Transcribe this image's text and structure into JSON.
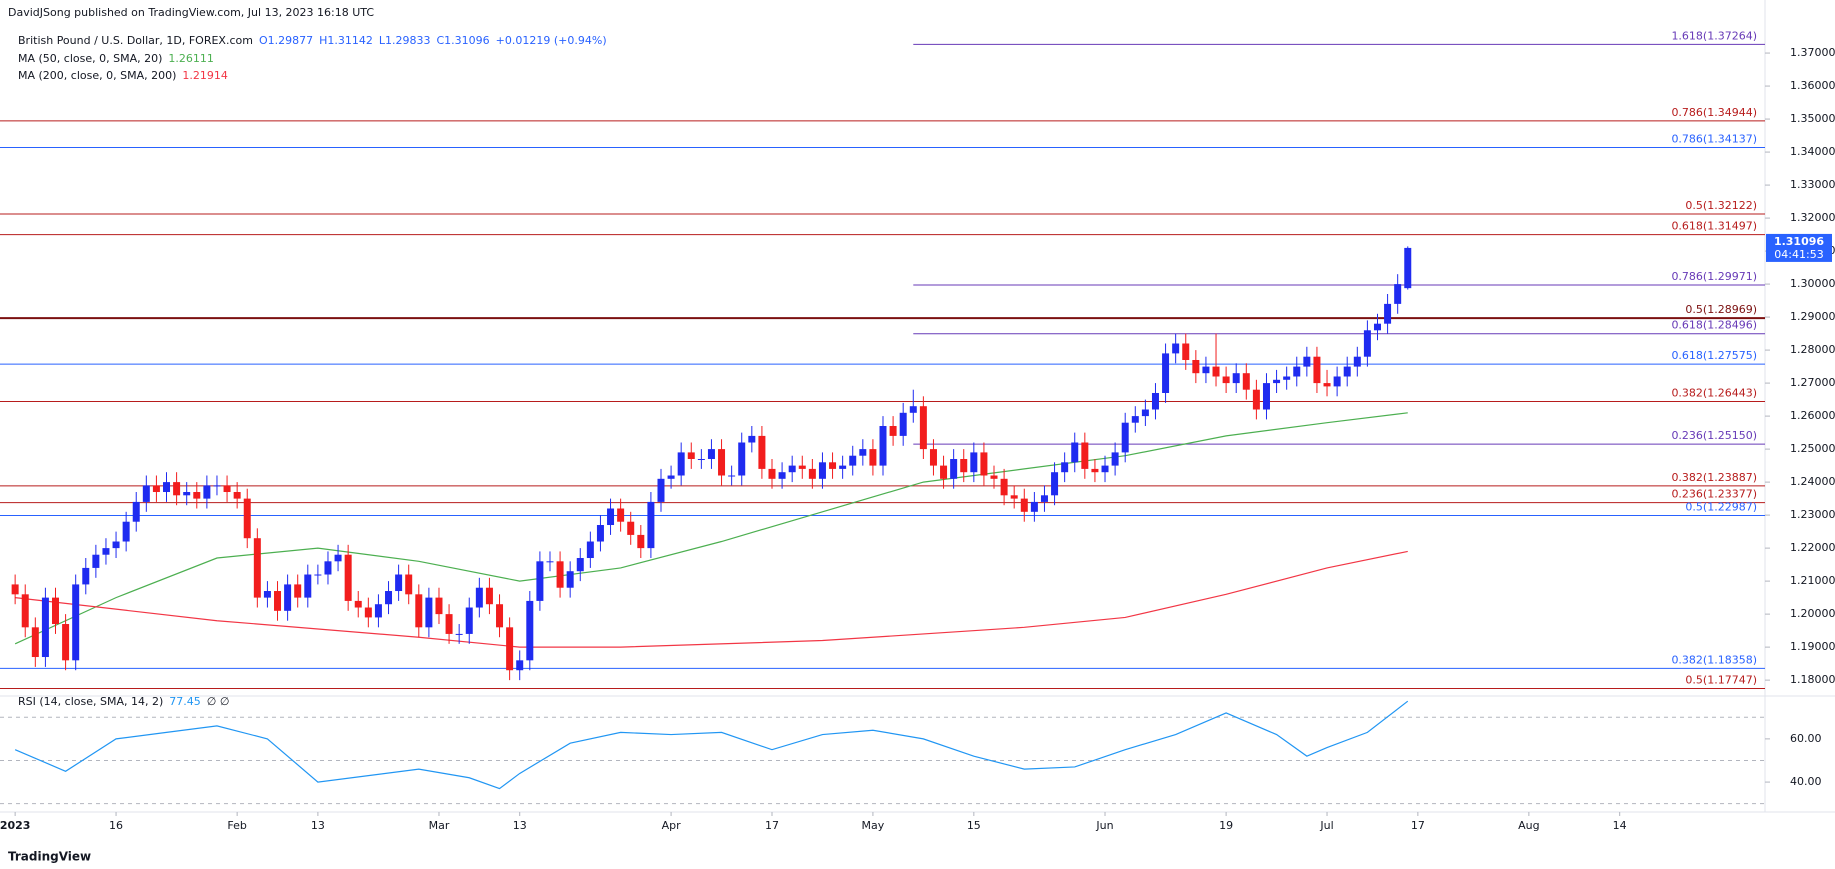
{
  "chart_data": {
    "type": "candlestick",
    "header": {
      "published": "DavidJSong published on TradingView.com, Jul 13, 2023 16:18 UTC",
      "symbol": "British Pound / U.S. Dollar, 1D, FOREX.com",
      "ohlc": [
        "O1.29877",
        "H1.31142",
        "L1.29833",
        "C1.31096",
        "+0.01219 (+0.94%)"
      ]
    },
    "last_price": "1.31096",
    "countdown": "04:41:53",
    "logo": "TradingView",
    "up_color": "#1f2bf0",
    "down_color": "#f21d1d",
    "xlim": [
      -1.5,
      173.4
    ],
    "ylim": [
      1.1761,
      1.3782
    ],
    "xticks": [
      {
        "value": 0,
        "label": "2023"
      },
      {
        "value": 10,
        "label": "16"
      },
      {
        "value": 22,
        "label": "Feb"
      },
      {
        "value": 30,
        "label": "13"
      },
      {
        "value": 42,
        "label": "Mar"
      },
      {
        "value": 50,
        "label": "13"
      },
      {
        "value": 65,
        "label": "Apr"
      },
      {
        "value": 75,
        "label": "17"
      },
      {
        "value": 85,
        "label": "May"
      },
      {
        "value": 95,
        "label": "15"
      },
      {
        "value": 108,
        "label": "Jun"
      },
      {
        "value": 120,
        "label": "19"
      },
      {
        "value": 130,
        "label": "Jul"
      },
      {
        "value": 139,
        "label": "17"
      },
      {
        "value": 150,
        "label": "Aug"
      },
      {
        "value": 159,
        "label": "14"
      }
    ],
    "yticks": [
      {
        "value": 1.18,
        "label": "1.18000"
      },
      {
        "value": 1.19,
        "label": "1.19000"
      },
      {
        "value": 1.2,
        "label": "1.20000"
      },
      {
        "value": 1.21,
        "label": "1.21000"
      },
      {
        "value": 1.22,
        "label": "1.22000"
      },
      {
        "value": 1.23,
        "label": "1.23000"
      },
      {
        "value": 1.24,
        "label": "1.24000"
      },
      {
        "value": 1.25,
        "label": "1.25000"
      },
      {
        "value": 1.26,
        "label": "1.26000"
      },
      {
        "value": 1.27,
        "label": "1.27000"
      },
      {
        "value": 1.28,
        "label": "1.28000"
      },
      {
        "value": 1.29,
        "label": "1.29000"
      },
      {
        "value": 1.3,
        "label": "1.30000"
      },
      {
        "value": 1.31,
        "label": "1.31000"
      },
      {
        "value": 1.32,
        "label": "1.32000"
      },
      {
        "value": 1.33,
        "label": "1.33000"
      },
      {
        "value": 1.34,
        "label": "1.34000"
      },
      {
        "value": 1.35,
        "label": "1.35000"
      },
      {
        "value": 1.36,
        "label": "1.36000"
      },
      {
        "value": 1.37,
        "label": "1.37000"
      }
    ],
    "candles": [
      [
        1.209,
        1.212,
        1.203,
        1.206
      ],
      [
        1.206,
        1.209,
        1.193,
        1.196
      ],
      [
        1.196,
        1.199,
        1.184,
        1.187
      ],
      [
        1.187,
        1.208,
        1.184,
        1.205
      ],
      [
        1.205,
        1.208,
        1.194,
        1.197
      ],
      [
        1.197,
        1.2,
        1.183,
        1.186
      ],
      [
        1.186,
        1.212,
        1.183,
        1.209
      ],
      [
        1.209,
        1.217,
        1.206,
        1.214
      ],
      [
        1.214,
        1.221,
        1.211,
        1.218
      ],
      [
        1.218,
        1.223,
        1.215,
        1.22
      ],
      [
        1.22,
        1.225,
        1.217,
        1.222
      ],
      [
        1.222,
        1.231,
        1.219,
        1.228
      ],
      [
        1.228,
        1.237,
        1.225,
        1.234
      ],
      [
        1.234,
        1.242,
        1.231,
        1.239
      ],
      [
        1.239,
        1.242,
        1.234,
        1.237
      ],
      [
        1.237,
        1.243,
        1.234,
        1.24
      ],
      [
        1.24,
        1.243,
        1.233,
        1.236
      ],
      [
        1.236,
        1.24,
        1.233,
        1.237
      ],
      [
        1.237,
        1.24,
        1.232,
        1.235
      ],
      [
        1.235,
        1.242,
        1.232,
        1.239
      ],
      [
        1.239,
        1.242,
        1.236,
        1.239
      ],
      [
        1.239,
        1.242,
        1.234,
        1.237
      ],
      [
        1.237,
        1.24,
        1.232,
        1.235
      ],
      [
        1.235,
        1.238,
        1.22,
        1.223
      ],
      [
        1.223,
        1.226,
        1.202,
        1.205
      ],
      [
        1.205,
        1.21,
        1.202,
        1.207
      ],
      [
        1.207,
        1.21,
        1.198,
        1.201
      ],
      [
        1.201,
        1.212,
        1.198,
        1.209
      ],
      [
        1.209,
        1.212,
        1.202,
        1.205
      ],
      [
        1.205,
        1.215,
        1.202,
        1.212
      ],
      [
        1.212,
        1.215,
        1.209,
        1.212
      ],
      [
        1.212,
        1.219,
        1.209,
        1.216
      ],
      [
        1.216,
        1.221,
        1.213,
        1.218
      ],
      [
        1.218,
        1.221,
        1.201,
        1.204
      ],
      [
        1.204,
        1.207,
        1.199,
        1.202
      ],
      [
        1.202,
        1.205,
        1.196,
        1.199
      ],
      [
        1.199,
        1.206,
        1.196,
        1.203
      ],
      [
        1.203,
        1.21,
        1.2,
        1.207
      ],
      [
        1.207,
        1.215,
        1.204,
        1.212
      ],
      [
        1.212,
        1.215,
        1.203,
        1.206
      ],
      [
        1.206,
        1.209,
        1.193,
        1.196
      ],
      [
        1.196,
        1.208,
        1.193,
        1.205
      ],
      [
        1.205,
        1.208,
        1.197,
        1.2
      ],
      [
        1.2,
        1.203,
        1.191,
        1.194
      ],
      [
        1.194,
        1.197,
        1.191,
        1.194
      ],
      [
        1.194,
        1.205,
        1.191,
        1.202
      ],
      [
        1.202,
        1.211,
        1.199,
        1.208
      ],
      [
        1.208,
        1.211,
        1.2,
        1.203
      ],
      [
        1.203,
        1.206,
        1.193,
        1.196
      ],
      [
        1.196,
        1.199,
        1.18,
        1.183
      ],
      [
        1.183,
        1.189,
        1.18,
        1.186
      ],
      [
        1.186,
        1.207,
        1.183,
        1.204
      ],
      [
        1.204,
        1.219,
        1.201,
        1.216
      ],
      [
        1.216,
        1.219,
        1.213,
        1.216
      ],
      [
        1.216,
        1.219,
        1.205,
        1.208
      ],
      [
        1.208,
        1.216,
        1.205,
        1.213
      ],
      [
        1.213,
        1.22,
        1.21,
        1.217
      ],
      [
        1.217,
        1.225,
        1.214,
        1.222
      ],
      [
        1.222,
        1.23,
        1.219,
        1.227
      ],
      [
        1.227,
        1.235,
        1.224,
        1.232
      ],
      [
        1.232,
        1.235,
        1.225,
        1.228
      ],
      [
        1.228,
        1.231,
        1.221,
        1.224
      ],
      [
        1.224,
        1.227,
        1.217,
        1.22
      ],
      [
        1.22,
        1.237,
        1.217,
        1.234
      ],
      [
        1.234,
        1.244,
        1.231,
        1.241
      ],
      [
        1.241,
        1.245,
        1.238,
        1.242
      ],
      [
        1.242,
        1.252,
        1.239,
        1.249
      ],
      [
        1.249,
        1.252,
        1.244,
        1.247
      ],
      [
        1.247,
        1.25,
        1.244,
        1.247
      ],
      [
        1.247,
        1.253,
        1.244,
        1.25
      ],
      [
        1.25,
        1.253,
        1.239,
        1.242
      ],
      [
        1.242,
        1.245,
        1.239,
        1.242
      ],
      [
        1.242,
        1.255,
        1.239,
        1.252
      ],
      [
        1.252,
        1.257,
        1.249,
        1.254
      ],
      [
        1.254,
        1.257,
        1.241,
        1.244
      ],
      [
        1.244,
        1.247,
        1.238,
        1.241
      ],
      [
        1.241,
        1.246,
        1.238,
        1.243
      ],
      [
        1.243,
        1.248,
        1.24,
        1.245
      ],
      [
        1.245,
        1.248,
        1.241,
        1.244
      ],
      [
        1.244,
        1.247,
        1.238,
        1.241
      ],
      [
        1.241,
        1.249,
        1.238,
        1.246
      ],
      [
        1.246,
        1.249,
        1.241,
        1.244
      ],
      [
        1.244,
        1.248,
        1.241,
        1.245
      ],
      [
        1.245,
        1.251,
        1.242,
        1.248
      ],
      [
        1.248,
        1.253,
        1.245,
        1.25
      ],
      [
        1.25,
        1.253,
        1.242,
        1.245
      ],
      [
        1.245,
        1.26,
        1.242,
        1.257
      ],
      [
        1.257,
        1.26,
        1.251,
        1.254
      ],
      [
        1.254,
        1.264,
        1.251,
        1.261
      ],
      [
        1.261,
        1.268,
        1.258,
        1.263
      ],
      [
        1.263,
        1.266,
        1.247,
        1.25
      ],
      [
        1.25,
        1.253,
        1.242,
        1.245
      ],
      [
        1.245,
        1.248,
        1.238,
        1.241
      ],
      [
        1.241,
        1.25,
        1.238,
        1.247
      ],
      [
        1.247,
        1.25,
        1.24,
        1.243
      ],
      [
        1.243,
        1.252,
        1.24,
        1.249
      ],
      [
        1.249,
        1.252,
        1.239,
        1.242
      ],
      [
        1.242,
        1.245,
        1.238,
        1.241
      ],
      [
        1.241,
        1.244,
        1.233,
        1.236
      ],
      [
        1.236,
        1.239,
        1.232,
        1.235
      ],
      [
        1.235,
        1.238,
        1.228,
        1.231
      ],
      [
        1.231,
        1.237,
        1.228,
        1.234
      ],
      [
        1.234,
        1.239,
        1.231,
        1.236
      ],
      [
        1.236,
        1.246,
        1.233,
        1.243
      ],
      [
        1.243,
        1.249,
        1.24,
        1.246
      ],
      [
        1.246,
        1.255,
        1.243,
        1.252
      ],
      [
        1.252,
        1.255,
        1.241,
        1.244
      ],
      [
        1.244,
        1.247,
        1.24,
        1.243
      ],
      [
        1.243,
        1.248,
        1.24,
        1.245
      ],
      [
        1.245,
        1.252,
        1.242,
        1.249
      ],
      [
        1.249,
        1.261,
        1.246,
        1.258
      ],
      [
        1.258,
        1.263,
        1.255,
        1.26
      ],
      [
        1.26,
        1.265,
        1.257,
        1.262
      ],
      [
        1.262,
        1.27,
        1.259,
        1.267
      ],
      [
        1.267,
        1.282,
        1.264,
        1.279
      ],
      [
        1.279,
        1.285,
        1.276,
        1.282
      ],
      [
        1.282,
        1.285,
        1.274,
        1.277
      ],
      [
        1.277,
        1.28,
        1.27,
        1.273
      ],
      [
        1.273,
        1.278,
        1.27,
        1.275
      ],
      [
        1.275,
        1.285,
        1.269,
        1.272
      ],
      [
        1.272,
        1.275,
        1.267,
        1.27
      ],
      [
        1.27,
        1.276,
        1.267,
        1.273
      ],
      [
        1.273,
        1.276,
        1.265,
        1.268
      ],
      [
        1.268,
        1.271,
        1.259,
        1.262
      ],
      [
        1.262,
        1.273,
        1.259,
        1.27
      ],
      [
        1.27,
        1.274,
        1.267,
        1.271
      ],
      [
        1.271,
        1.275,
        1.268,
        1.272
      ],
      [
        1.272,
        1.278,
        1.269,
        1.275
      ],
      [
        1.275,
        1.281,
        1.272,
        1.278
      ],
      [
        1.278,
        1.281,
        1.267,
        1.27
      ],
      [
        1.27,
        1.274,
        1.266,
        1.269
      ],
      [
        1.269,
        1.275,
        1.266,
        1.272
      ],
      [
        1.272,
        1.278,
        1.269,
        1.275
      ],
      [
        1.275,
        1.281,
        1.272,
        1.278
      ],
      [
        1.278,
        1.289,
        1.275,
        1.286
      ],
      [
        1.286,
        1.291,
        1.283,
        1.288
      ],
      [
        1.288,
        1.297,
        1.285,
        1.294
      ],
      [
        1.294,
        1.303,
        1.291,
        1.3
      ],
      [
        1.29877,
        1.31142,
        1.29833,
        1.31096
      ]
    ],
    "series": [
      {
        "name": "MA (50, close, 0, SMA, 20)",
        "last": "1.26111",
        "color": "#4caf50",
        "x": [
          0,
          10,
          20,
          30,
          40,
          50,
          60,
          70,
          80,
          90,
          100,
          110,
          120,
          130,
          138
        ],
        "values": [
          1.191,
          1.205,
          1.217,
          1.22,
          1.216,
          1.21,
          1.214,
          1.222,
          1.231,
          1.24,
          1.244,
          1.248,
          1.254,
          1.258,
          1.261
        ]
      },
      {
        "name": "MA (200, close, 0, SMA, 200)",
        "last": "1.21914",
        "color": "#f23645",
        "x": [
          0,
          20,
          40,
          50,
          60,
          80,
          100,
          110,
          120,
          130,
          138
        ],
        "values": [
          1.205,
          1.198,
          1.193,
          1.19,
          1.19,
          1.192,
          1.196,
          1.199,
          1.206,
          1.214,
          1.219
        ]
      }
    ],
    "levels": [
      {
        "label": "1.618(1.37264)",
        "value": 1.37264,
        "color": "#673ab7",
        "span": "right"
      },
      {
        "label": "0.786(1.34944)",
        "value": 1.34944,
        "color": "#b71c1c",
        "span": "full"
      },
      {
        "label": "0.786(1.34137)",
        "value": 1.34137,
        "color": "#2962ff",
        "span": "full"
      },
      {
        "label": "0.5(1.32122)",
        "value": 1.32122,
        "color": "#b71c1c",
        "span": "full"
      },
      {
        "label": "0.618(1.31497)",
        "value": 1.31497,
        "color": "#b71c1c",
        "span": "full"
      },
      {
        "label": "0.786(1.29971)",
        "value": 1.29971,
        "color": "#673ab7",
        "span": "right"
      },
      {
        "label": "0.5(1.28969)",
        "value": 1.28969,
        "color": "#7b1010",
        "span": "full"
      },
      {
        "label": "0.618(1.28496)",
        "value": 1.28496,
        "color": "#673ab7",
        "span": "right"
      },
      {
        "label": "0.618(1.27575)",
        "value": 1.27575,
        "color": "#2962ff",
        "span": "full"
      },
      {
        "label": "0.382(1.26443)",
        "value": 1.26443,
        "color": "#b71c1c",
        "span": "full"
      },
      {
        "label": "0.236(1.25150)",
        "value": 1.2515,
        "color": "#673ab7",
        "span": "right"
      },
      {
        "label": "0.382(1.23887)",
        "value": 1.23887,
        "color": "#b71c1c",
        "span": "full"
      },
      {
        "label": "0.236(1.23377)",
        "value": 1.23377,
        "color": "#b71c1c",
        "span": "full"
      },
      {
        "label": "0.5(1.22987)",
        "value": 1.22987,
        "color": "#2962ff",
        "span": "full"
      },
      {
        "label": "0.382(1.18358)",
        "value": 1.18358,
        "color": "#2962ff",
        "span": "full"
      },
      {
        "label": "0.5(1.17747)",
        "value": 1.17747,
        "color": "#b71c1c",
        "span": "full"
      }
    ],
    "rsi": {
      "name": "RSI (14, close, SMA, 14, 2)",
      "last": "77.45",
      "extra": "∅ ∅",
      "color": "#2196f3",
      "ylim": [
        28,
        78
      ],
      "yticks": [
        {
          "value": 40,
          "label": "40.00"
        },
        {
          "value": 60,
          "label": "60.00"
        }
      ],
      "bands": [
        30,
        50,
        70
      ],
      "x": [
        0,
        5,
        10,
        15,
        20,
        25,
        30,
        35,
        40,
        45,
        48,
        50,
        55,
        60,
        65,
        70,
        75,
        80,
        85,
        90,
        95,
        100,
        105,
        110,
        115,
        120,
        125,
        128,
        130,
        134,
        138
      ],
      "values": [
        55,
        45,
        60,
        63,
        66,
        60,
        40,
        43,
        46,
        42,
        37,
        44,
        58,
        63,
        62,
        63,
        55,
        62,
        64,
        60,
        52,
        46,
        47,
        55,
        62,
        72,
        62,
        52,
        56,
        63,
        77.45
      ]
    }
  }
}
